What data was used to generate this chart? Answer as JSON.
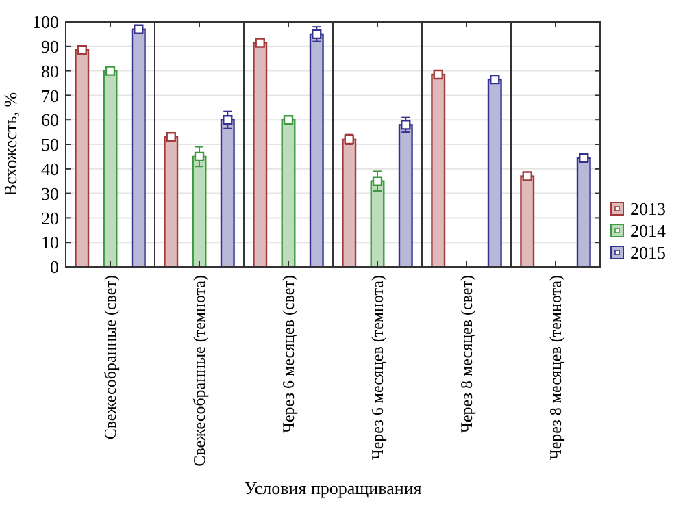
{
  "chart_data": {
    "type": "bar",
    "xlabel": "Условия проращивания",
    "ylabel": "Всхожесть, %",
    "categories": [
      "Свежесобранные (свет)",
      "Свежесобранные (темнота)",
      "Через 6 месяцев (свет)",
      "Через 6 месяцев (темнота)",
      "Через 8 месяцев (свет)",
      "Через 8 месяцев (темнота)"
    ],
    "series": [
      {
        "name": "2013",
        "color": "#a33a3a",
        "values": [
          88.5,
          53,
          91.5,
          52,
          78.5,
          37
        ],
        "errors": [
          1,
          1,
          1,
          2,
          1,
          1
        ]
      },
      {
        "name": "2014",
        "color": "#3f9a3f",
        "values": [
          80,
          45,
          60,
          35,
          null,
          null
        ],
        "errors": [
          1,
          4,
          1,
          4,
          null,
          null
        ]
      },
      {
        "name": "2015",
        "color": "#33338f",
        "values": [
          97,
          60,
          95,
          58,
          76.5,
          44.5
        ],
        "errors": [
          1.5,
          3.5,
          3,
          3,
          1,
          1
        ]
      }
    ],
    "ylim": [
      0,
      100
    ],
    "yticks": [
      0,
      10,
      20,
      30,
      40,
      50,
      60,
      70,
      80,
      90,
      100
    ],
    "grid": "y",
    "legend": "bottom right",
    "marker": "square"
  }
}
